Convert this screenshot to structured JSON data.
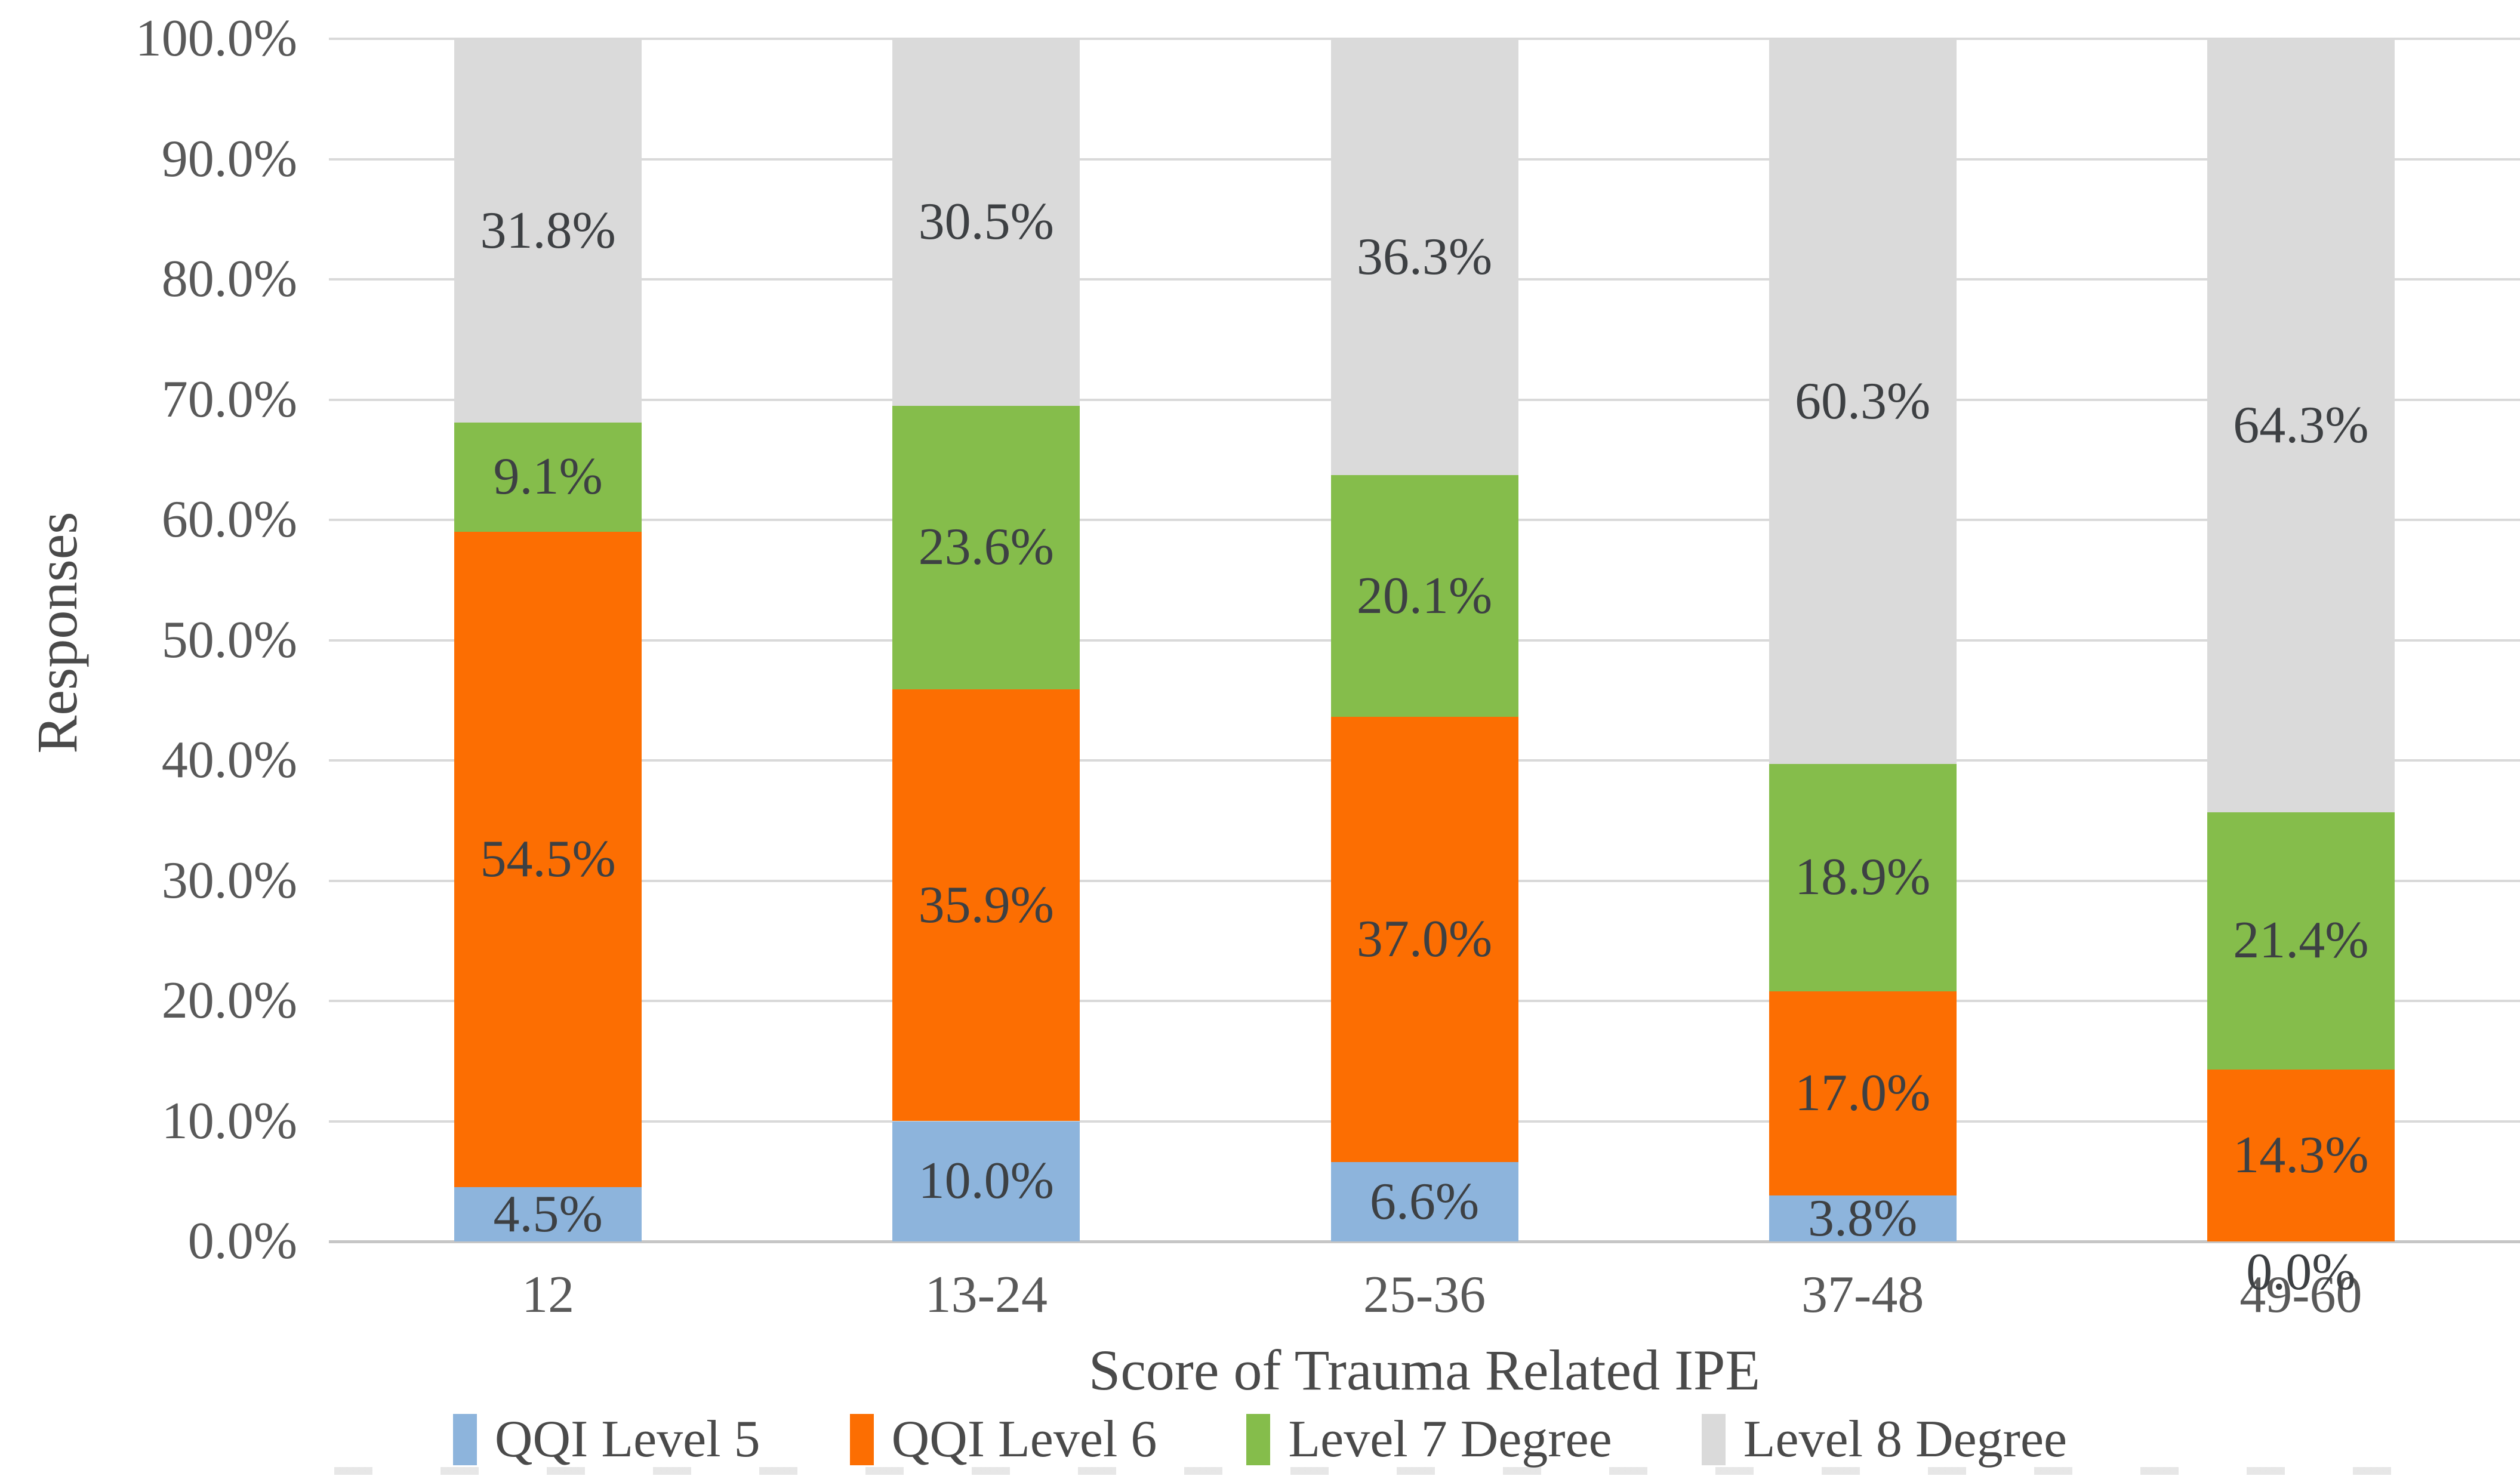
{
  "chart_data": {
    "type": "bar",
    "variant": "stacked-100-percent-column",
    "title": "",
    "xlabel": "Score of Trauma Related IPE",
    "ylabel": "Responses",
    "ylim": [
      0,
      100
    ],
    "grid": true,
    "legend_position": "bottom",
    "y_tick_values": [
      100,
      90,
      80,
      70,
      60,
      50,
      40,
      30,
      20,
      10,
      0
    ],
    "y_ticks": [
      "100.0%",
      "90.0%",
      "80.0%",
      "70.0%",
      "60.0%",
      "50.0%",
      "40.0%",
      "30.0%",
      "20.0%",
      "10.0%",
      "0.0%"
    ],
    "categories": [
      "12",
      "13-24",
      "25-36",
      "37-48",
      "49-60"
    ],
    "series": [
      {
        "name": "QQI Level 5",
        "color": "#8db4dc",
        "values": [
          4.5,
          10.0,
          6.6,
          3.8,
          0.0
        ],
        "labels": [
          "4.5%",
          "10.0%",
          "6.6%",
          "3.8%",
          "0.0%"
        ]
      },
      {
        "name": "QQI Level 6",
        "color": "#fc6e02",
        "values": [
          54.5,
          35.9,
          37.0,
          17.0,
          14.3
        ],
        "labels": [
          "54.5%",
          "35.9%",
          "37.0%",
          "17.0%",
          "14.3%"
        ]
      },
      {
        "name": "Level 7 Degree",
        "color": "#85bd4b",
        "values": [
          9.1,
          23.6,
          20.1,
          18.9,
          21.4
        ],
        "labels": [
          "9.1%",
          "23.6%",
          "20.1%",
          "18.9%",
          "21.4%"
        ]
      },
      {
        "name": "Level 8 Degree",
        "color": "#dadada",
        "values": [
          31.8,
          30.5,
          36.3,
          60.3,
          64.3
        ],
        "labels": [
          "31.8%",
          "30.5%",
          "36.3%",
          "60.3%",
          "64.3%"
        ]
      }
    ]
  }
}
